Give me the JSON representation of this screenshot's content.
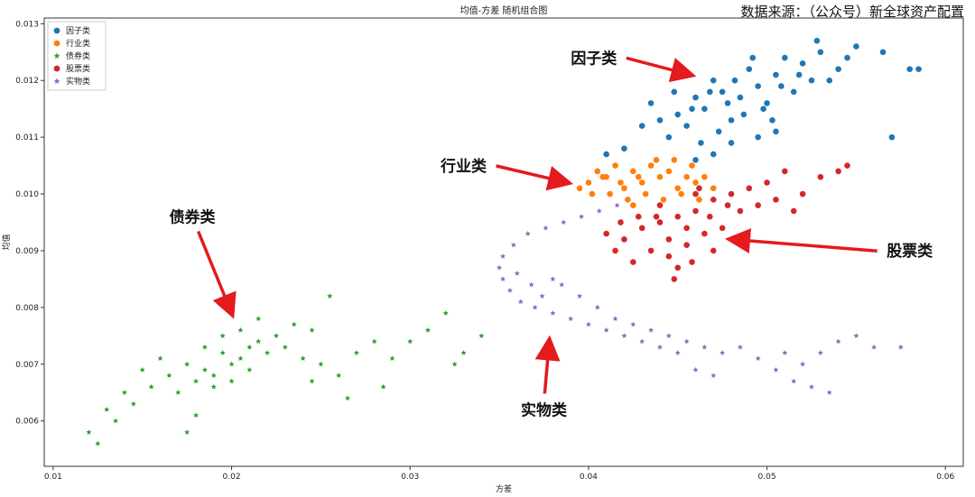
{
  "source_note": "数据来源：（公众号）新全球资产配置",
  "chart_data": {
    "type": "scatter",
    "title": "均值-方差 随机组合图",
    "xlabel": "方差",
    "ylabel": "均值",
    "xlim": [
      0.0095,
      0.061
    ],
    "ylim": [
      0.0052,
      0.0131
    ],
    "xticks": [
      "0.01",
      "0.02",
      "0.03",
      "0.04",
      "0.05",
      "0.06"
    ],
    "xtick_values": [
      0.01,
      0.02,
      0.03,
      0.04,
      0.05,
      0.06
    ],
    "yticks": [
      "0.006",
      "0.007",
      "0.008",
      "0.009",
      "0.010",
      "0.011",
      "0.012",
      "0.013"
    ],
    "ytick_values": [
      0.006,
      0.007,
      0.008,
      0.009,
      0.01,
      0.011,
      0.012,
      0.013
    ],
    "legend_position": "upper-left",
    "series": [
      {
        "name": "因子类",
        "color": "#1f77b4",
        "marker": "circle",
        "points": [
          [
            0.0465,
            0.0115
          ],
          [
            0.0475,
            0.0118
          ],
          [
            0.0485,
            0.0117
          ],
          [
            0.0495,
            0.0119
          ],
          [
            0.0505,
            0.0121
          ],
          [
            0.0455,
            0.0112
          ],
          [
            0.0445,
            0.011
          ],
          [
            0.048,
            0.0113
          ],
          [
            0.049,
            0.0122
          ],
          [
            0.05,
            0.0116
          ],
          [
            0.051,
            0.0124
          ],
          [
            0.052,
            0.0123
          ],
          [
            0.047,
            0.012
          ],
          [
            0.046,
            0.0117
          ],
          [
            0.045,
            0.0114
          ],
          [
            0.044,
            0.0113
          ],
          [
            0.043,
            0.0112
          ],
          [
            0.053,
            0.0125
          ],
          [
            0.054,
            0.0122
          ],
          [
            0.055,
            0.0126
          ],
          [
            0.0565,
            0.0125
          ],
          [
            0.058,
            0.0122
          ],
          [
            0.0585,
            0.0122
          ],
          [
            0.0545,
            0.0124
          ],
          [
            0.057,
            0.011
          ],
          [
            0.046,
            0.0106
          ],
          [
            0.047,
            0.0107
          ],
          [
            0.048,
            0.0109
          ],
          [
            0.0495,
            0.011
          ],
          [
            0.0505,
            0.0111
          ],
          [
            0.0515,
            0.0118
          ],
          [
            0.0525,
            0.012
          ],
          [
            0.0435,
            0.0116
          ],
          [
            0.042,
            0.0108
          ],
          [
            0.041,
            0.0107
          ],
          [
            0.0487,
            0.0114
          ],
          [
            0.0478,
            0.0116
          ],
          [
            0.0468,
            0.0118
          ],
          [
            0.0498,
            0.0115
          ],
          [
            0.0508,
            0.0119
          ],
          [
            0.0458,
            0.0115
          ],
          [
            0.0448,
            0.0118
          ],
          [
            0.0518,
            0.0121
          ],
          [
            0.0492,
            0.0124
          ],
          [
            0.0482,
            0.012
          ],
          [
            0.0535,
            0.012
          ],
          [
            0.0528,
            0.0127
          ],
          [
            0.0473,
            0.0111
          ],
          [
            0.0463,
            0.0109
          ],
          [
            0.0503,
            0.0113
          ]
        ]
      },
      {
        "name": "行业类",
        "color": "#ff7f0e",
        "marker": "circle",
        "points": [
          [
            0.04,
            0.0102
          ],
          [
            0.041,
            0.0103
          ],
          [
            0.042,
            0.0101
          ],
          [
            0.043,
            0.0102
          ],
          [
            0.044,
            0.0103
          ],
          [
            0.045,
            0.0101
          ],
          [
            0.046,
            0.0102
          ],
          [
            0.0465,
            0.0103
          ],
          [
            0.0405,
            0.0104
          ],
          [
            0.0415,
            0.0105
          ],
          [
            0.0425,
            0.0104
          ],
          [
            0.0435,
            0.0105
          ],
          [
            0.0445,
            0.0104
          ],
          [
            0.0455,
            0.0103
          ],
          [
            0.0412,
            0.01
          ],
          [
            0.0422,
            0.0099
          ],
          [
            0.0432,
            0.01
          ],
          [
            0.0442,
            0.0099
          ],
          [
            0.0452,
            0.01
          ],
          [
            0.0395,
            0.0101
          ],
          [
            0.047,
            0.0101
          ],
          [
            0.0438,
            0.0106
          ],
          [
            0.0448,
            0.0106
          ],
          [
            0.0428,
            0.0103
          ],
          [
            0.0418,
            0.0102
          ],
          [
            0.0458,
            0.0105
          ],
          [
            0.0408,
            0.0103
          ],
          [
            0.0402,
            0.01
          ],
          [
            0.0425,
            0.0098
          ],
          [
            0.0462,
            0.0099
          ]
        ]
      },
      {
        "name": "债券类",
        "color": "#2ca02c",
        "marker": "star",
        "points": [
          [
            0.012,
            0.0058
          ],
          [
            0.0125,
            0.0056
          ],
          [
            0.0135,
            0.006
          ],
          [
            0.0145,
            0.0063
          ],
          [
            0.0155,
            0.0066
          ],
          [
            0.0165,
            0.0068
          ],
          [
            0.0175,
            0.007
          ],
          [
            0.0185,
            0.0069
          ],
          [
            0.0195,
            0.0072
          ],
          [
            0.0205,
            0.0071
          ],
          [
            0.0215,
            0.0074
          ],
          [
            0.0225,
            0.0075
          ],
          [
            0.0235,
            0.0077
          ],
          [
            0.0245,
            0.0076
          ],
          [
            0.0255,
            0.0082
          ],
          [
            0.017,
            0.0065
          ],
          [
            0.018,
            0.0067
          ],
          [
            0.019,
            0.0068
          ],
          [
            0.02,
            0.007
          ],
          [
            0.021,
            0.0069
          ],
          [
            0.016,
            0.0071
          ],
          [
            0.015,
            0.0069
          ],
          [
            0.014,
            0.0065
          ],
          [
            0.013,
            0.0062
          ],
          [
            0.022,
            0.0072
          ],
          [
            0.023,
            0.0073
          ],
          [
            0.024,
            0.0071
          ],
          [
            0.025,
            0.007
          ],
          [
            0.026,
            0.0068
          ],
          [
            0.027,
            0.0072
          ],
          [
            0.028,
            0.0074
          ],
          [
            0.029,
            0.0071
          ],
          [
            0.03,
            0.0074
          ],
          [
            0.031,
            0.0076
          ],
          [
            0.032,
            0.0079
          ],
          [
            0.034,
            0.0075
          ],
          [
            0.033,
            0.0072
          ],
          [
            0.0325,
            0.007
          ],
          [
            0.0285,
            0.0066
          ],
          [
            0.0265,
            0.0064
          ],
          [
            0.0245,
            0.0067
          ],
          [
            0.018,
            0.0061
          ],
          [
            0.0175,
            0.0058
          ],
          [
            0.0185,
            0.0073
          ],
          [
            0.0195,
            0.0075
          ],
          [
            0.0205,
            0.0076
          ],
          [
            0.0215,
            0.0078
          ],
          [
            0.019,
            0.0066
          ],
          [
            0.02,
            0.0067
          ],
          [
            0.021,
            0.0073
          ]
        ]
      },
      {
        "name": "股票类",
        "color": "#d62728",
        "marker": "circle",
        "points": [
          [
            0.042,
            0.0092
          ],
          [
            0.043,
            0.0094
          ],
          [
            0.044,
            0.0095
          ],
          [
            0.045,
            0.0096
          ],
          [
            0.046,
            0.0097
          ],
          [
            0.047,
            0.0099
          ],
          [
            0.048,
            0.01
          ],
          [
            0.049,
            0.0101
          ],
          [
            0.05,
            0.0102
          ],
          [
            0.0435,
            0.009
          ],
          [
            0.0445,
            0.0089
          ],
          [
            0.0455,
            0.0091
          ],
          [
            0.0465,
            0.0093
          ],
          [
            0.0475,
            0.0094
          ],
          [
            0.0425,
            0.0088
          ],
          [
            0.0415,
            0.009
          ],
          [
            0.041,
            0.0093
          ],
          [
            0.045,
            0.0087
          ],
          [
            0.044,
            0.0098
          ],
          [
            0.046,
            0.01
          ],
          [
            0.051,
            0.0104
          ],
          [
            0.052,
            0.01
          ],
          [
            0.053,
            0.0103
          ],
          [
            0.054,
            0.0104
          ],
          [
            0.0545,
            0.0105
          ],
          [
            0.0515,
            0.0097
          ],
          [
            0.0485,
            0.0097
          ],
          [
            0.0495,
            0.0098
          ],
          [
            0.0505,
            0.0099
          ],
          [
            0.0455,
            0.0094
          ],
          [
            0.0445,
            0.0092
          ],
          [
            0.0468,
            0.0096
          ],
          [
            0.0478,
            0.0098
          ],
          [
            0.0438,
            0.0096
          ],
          [
            0.0428,
            0.0096
          ],
          [
            0.0418,
            0.0095
          ],
          [
            0.0448,
            0.0085
          ],
          [
            0.0458,
            0.0088
          ],
          [
            0.047,
            0.009
          ],
          [
            0.0462,
            0.0101
          ]
        ]
      },
      {
        "name": "实物类",
        "color": "#9467bd",
        "marker": "star",
        "points": [
          [
            0.035,
            0.0087
          ],
          [
            0.0352,
            0.0085
          ],
          [
            0.0356,
            0.0083
          ],
          [
            0.0362,
            0.0081
          ],
          [
            0.037,
            0.008
          ],
          [
            0.038,
            0.0079
          ],
          [
            0.039,
            0.0078
          ],
          [
            0.04,
            0.0077
          ],
          [
            0.041,
            0.0076
          ],
          [
            0.042,
            0.0075
          ],
          [
            0.043,
            0.0074
          ],
          [
            0.044,
            0.0073
          ],
          [
            0.045,
            0.0072
          ],
          [
            0.046,
            0.0069
          ],
          [
            0.047,
            0.0068
          ],
          [
            0.0352,
            0.0089
          ],
          [
            0.0358,
            0.0091
          ],
          [
            0.0366,
            0.0093
          ],
          [
            0.0376,
            0.0094
          ],
          [
            0.0386,
            0.0095
          ],
          [
            0.0396,
            0.0096
          ],
          [
            0.0406,
            0.0097
          ],
          [
            0.0416,
            0.0098
          ],
          [
            0.0385,
            0.0084
          ],
          [
            0.0395,
            0.0082
          ],
          [
            0.0405,
            0.008
          ],
          [
            0.0415,
            0.0078
          ],
          [
            0.0425,
            0.0077
          ],
          [
            0.0435,
            0.0076
          ],
          [
            0.0445,
            0.0075
          ],
          [
            0.0455,
            0.0074
          ],
          [
            0.0465,
            0.0073
          ],
          [
            0.0475,
            0.0072
          ],
          [
            0.0485,
            0.0073
          ],
          [
            0.0495,
            0.0071
          ],
          [
            0.0505,
            0.0069
          ],
          [
            0.0515,
            0.0067
          ],
          [
            0.0525,
            0.0066
          ],
          [
            0.0535,
            0.0065
          ],
          [
            0.054,
            0.0074
          ],
          [
            0.056,
            0.0073
          ],
          [
            0.0575,
            0.0073
          ],
          [
            0.055,
            0.0075
          ],
          [
            0.053,
            0.0072
          ],
          [
            0.052,
            0.007
          ],
          [
            0.051,
            0.0072
          ],
          [
            0.036,
            0.0086
          ],
          [
            0.0368,
            0.0084
          ],
          [
            0.0374,
            0.0082
          ],
          [
            0.038,
            0.0085
          ]
        ]
      }
    ],
    "annotations": [
      {
        "text": "因子类",
        "x": 0.0403,
        "y": 0.0123,
        "arrow_to": [
          0.0457,
          0.0121
        ]
      },
      {
        "text": "行业类",
        "x": 0.033,
        "y": 0.0104,
        "arrow_to": [
          0.0388,
          0.0102
        ]
      },
      {
        "text": "债券类",
        "x": 0.0178,
        "y": 0.0095,
        "arrow_to": [
          0.02,
          0.0079
        ]
      },
      {
        "text": "股票类",
        "x": 0.058,
        "y": 0.0089,
        "arrow_to": [
          0.048,
          0.0092
        ]
      },
      {
        "text": "实物类",
        "x": 0.0375,
        "y": 0.0061,
        "arrow_to": [
          0.0378,
          0.0074
        ]
      }
    ]
  }
}
